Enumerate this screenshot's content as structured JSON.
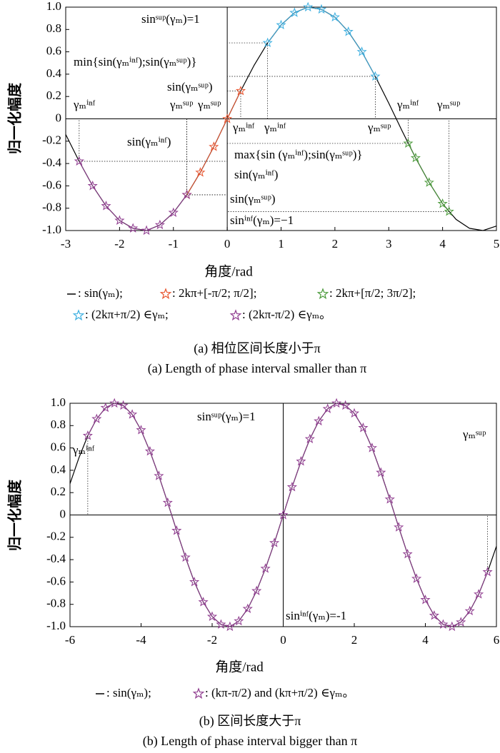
{
  "chart_data": [
    {
      "type": "line",
      "title": "(a) 相位区间长度小于π",
      "subtitle": "(a) Length of phase interval smaller than π",
      "x_label": "角度/rad",
      "y_label": "归一化幅度",
      "xlim": [
        -3,
        5
      ],
      "ylim": [
        -1,
        1
      ],
      "xticks": [
        -3,
        -2,
        -1,
        0,
        1,
        2,
        3,
        4,
        5
      ],
      "yticks": [
        {
          "value": -1,
          "label": "-1.0"
        },
        -0.8,
        -0.6,
        -0.4,
        -0.2,
        0,
        0.2,
        0.4,
        0.6,
        0.8,
        {
          "value": 1,
          "label": "1.0"
        }
      ],
      "series": [
        {
          "name": ": sin(γₘ);",
          "color": "#000000",
          "marker": "line",
          "x": [
            -3,
            -2.75,
            -2.5,
            -2.25,
            -2,
            -1.75,
            -1.5,
            -1.25,
            -1,
            -0.75,
            -0.5,
            -0.25,
            0,
            0.25,
            0.5,
            0.75,
            1,
            1.25,
            1.5,
            1.75,
            2,
            2.25,
            2.5,
            2.75,
            3,
            3.25,
            3.5,
            3.75,
            4,
            4.25,
            4.5,
            4.75,
            5
          ],
          "values": [
            -0.14,
            -0.38,
            -0.6,
            -0.78,
            -0.91,
            -0.98,
            -1,
            -0.95,
            -0.84,
            -0.68,
            -0.48,
            -0.25,
            0,
            0.25,
            0.48,
            0.68,
            0.84,
            0.95,
            1,
            0.98,
            0.91,
            0.78,
            0.6,
            0.38,
            0.14,
            -0.11,
            -0.35,
            -0.57,
            -0.76,
            -0.9,
            -0.98,
            -1,
            -0.96
          ]
        },
        {
          "name": ": 2kπ+[-π/2; π/2];",
          "color": "#e8542e",
          "marker": "star",
          "x": [
            -0.75,
            -0.5,
            -0.25,
            0,
            0.25
          ],
          "values": [
            -0.68,
            -0.48,
            -0.25,
            0,
            0.25
          ]
        },
        {
          "name": ": 2kπ+[π/2; 3π/2];",
          "color": "#4a9a3a",
          "marker": "star",
          "x": [
            3.36,
            3.5,
            3.75,
            4,
            4.12
          ],
          "values": [
            -0.22,
            -0.35,
            -0.57,
            -0.76,
            -0.83
          ]
        },
        {
          "name": ": (2kπ+π/2) ∈γₘ;",
          "color": "#3aaee0",
          "marker": "star",
          "x": [
            0.75,
            1,
            1.25,
            1.5,
            1.75,
            2,
            2.25,
            2.5,
            2.75
          ],
          "values": [
            0.68,
            0.84,
            0.95,
            1,
            0.98,
            0.91,
            0.78,
            0.6,
            0.38
          ]
        },
        {
          "name": ": (2kπ-π/2) ∈γₘ。",
          "color": "#8e3a8e",
          "marker": "star",
          "x": [
            -2.75,
            -2.5,
            -2.25,
            -2,
            -1.75,
            -1.5,
            -1.25,
            -1,
            -0.75
          ],
          "values": [
            -0.38,
            -0.6,
            -0.78,
            -0.91,
            -0.98,
            -1,
            -0.95,
            -0.84,
            -0.68
          ]
        }
      ],
      "annotations": [
        "sinˢᵘᵖ(γₘ)=1",
        "min{sin(γₘⁱⁿᶠ);sin(γₘˢᵘᵖ)}",
        "sin(γₘˢᵘᵖ)",
        "γₘⁱⁿᶠ",
        "γₘˢᵘᵖ",
        "γₘˢᵘᵖ",
        "γₘⁱⁿᶠ",
        "γₘⁱⁿᶠ",
        "γₘˢᵘᵖ",
        "γₘⁱⁿᶠ",
        "γₘˢᵘᵖ",
        "sin(γₘⁱⁿᶠ)",
        "max{sin (γₘⁱⁿᶠ);sin(γₘˢᵘᵖ)}",
        "sin(γₘⁱⁿᶠ)",
        "sin(γₘˢᵘᵖ)",
        "sinⁱⁿᶠ(γₘ)=−1"
      ]
    },
    {
      "type": "line",
      "title": "(b) 区间长度大于π",
      "subtitle": "(b) Length of phase interval bigger than π",
      "x_label": "角度/rad",
      "y_label": "归一化幅度",
      "xlim": [
        -6,
        6
      ],
      "ylim": [
        -1,
        1
      ],
      "xticks": [
        -6,
        -4,
        -2,
        0,
        2,
        4,
        6
      ],
      "yticks": [
        {
          "value": -1,
          "label": "-1.0"
        },
        -0.8,
        -0.6,
        -0.4,
        -0.2,
        0,
        0.2,
        0.4,
        0.6,
        0.8,
        {
          "value": 1,
          "label": "1.0"
        }
      ],
      "series": [
        {
          "name": ": sin(γₘ);",
          "color": "#000000",
          "marker": "line",
          "x": [
            -6,
            -5.75,
            -5.5,
            -5.25,
            -5,
            -4.75,
            -4.5,
            -4.25,
            -4,
            -3.75,
            -3.5,
            -3.25,
            -3,
            -2.75,
            -2.5,
            -2.25,
            -2,
            -1.75,
            -1.5,
            -1.25,
            -1,
            -0.75,
            -0.5,
            -0.25,
            0,
            0.25,
            0.5,
            0.75,
            1,
            1.25,
            1.5,
            1.75,
            2,
            2.25,
            2.5,
            2.75,
            3,
            3.25,
            3.5,
            3.75,
            4,
            4.25,
            4.5,
            4.75,
            5,
            5.25,
            5.5,
            5.75,
            6
          ],
          "values": [
            0.28,
            0.51,
            0.71,
            0.86,
            0.96,
            1,
            0.98,
            0.9,
            0.76,
            0.57,
            0.35,
            0.11,
            -0.14,
            -0.38,
            -0.6,
            -0.78,
            -0.91,
            -0.98,
            -1,
            -0.95,
            -0.84,
            -0.68,
            -0.48,
            -0.25,
            0,
            0.25,
            0.48,
            0.68,
            0.84,
            0.95,
            1,
            0.98,
            0.91,
            0.78,
            0.6,
            0.38,
            0.14,
            -0.11,
            -0.35,
            -0.57,
            -0.76,
            -0.9,
            -0.98,
            -1,
            -0.96,
            -0.86,
            -0.71,
            -0.51,
            -0.28
          ]
        },
        {
          "name": ": (kπ-π/2) and (kπ+π/2) ∈γₘ。",
          "color": "#8e3a8e",
          "marker": "star",
          "x": [
            -5.5,
            -5.25,
            -5,
            -4.75,
            -4.5,
            -4.25,
            -4,
            -3.75,
            -3.5,
            -3.25,
            -3,
            -2.75,
            -2.5,
            -2.25,
            -2,
            -1.75,
            -1.5,
            -1.25,
            -1,
            -0.75,
            -0.5,
            -0.25,
            0,
            0.25,
            0.5,
            0.75,
            1,
            1.25,
            1.5,
            1.75,
            2,
            2.25,
            2.5,
            2.75,
            3,
            3.25,
            3.5,
            3.75,
            4,
            4.25,
            4.5,
            4.75,
            5,
            5.25,
            5.5,
            5.75
          ],
          "values": [
            0.71,
            0.86,
            0.96,
            1,
            0.98,
            0.9,
            0.76,
            0.57,
            0.35,
            0.11,
            -0.14,
            -0.38,
            -0.6,
            -0.78,
            -0.91,
            -0.98,
            -1,
            -0.95,
            -0.84,
            -0.68,
            -0.48,
            -0.25,
            0,
            0.25,
            0.48,
            0.68,
            0.84,
            0.95,
            1,
            0.98,
            0.91,
            0.78,
            0.6,
            0.38,
            0.14,
            -0.11,
            -0.35,
            -0.57,
            -0.76,
            -0.9,
            -0.98,
            -1,
            -0.96,
            -0.86,
            -0.71,
            -0.51
          ]
        }
      ],
      "annotations": [
        "sinˢᵘᵖ(γₘ)=1",
        "γₘⁱⁿᶠ",
        "γₘˢᵘᵖ",
        "sinⁱⁿᶠ(γₘ)=-1"
      ]
    }
  ]
}
